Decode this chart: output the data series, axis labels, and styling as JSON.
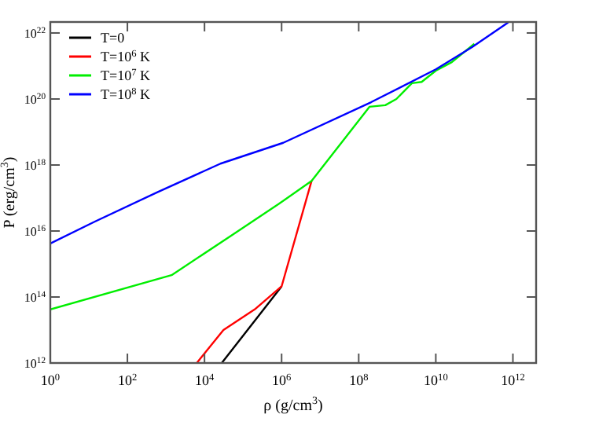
{
  "chart_data": {
    "type": "line",
    "xlabel": "ρ (g/cm$^{3}$)",
    "ylabel": "P (erg/cm$^{3}$)",
    "log": "xy",
    "legend": "top left",
    "grid": false,
    "xlim": [
      1,
      4000000000000.0
    ],
    "ylim": [
      1000000000000.0,
      2.15e+22
    ],
    "xticks": [
      {
        "value": 1,
        "label": "10$^{0}$"
      },
      {
        "value": 100,
        "label": "10$^{2}$"
      },
      {
        "value": 10000,
        "label": "10$^{4}$"
      },
      {
        "value": 1000000,
        "label": "10$^{6}$"
      },
      {
        "value": 100000000,
        "label": "10$^{8}$"
      },
      {
        "value": 10000000000,
        "label": "10$^{10}$"
      },
      {
        "value": 1000000000000,
        "label": "10$^{12}$"
      }
    ],
    "yticks": [
      {
        "value": 1000000000000.0,
        "label": "10$^{12}$"
      },
      {
        "value": 100000000000000.0,
        "label": "10$^{14}$"
      },
      {
        "value": 1e+16,
        "label": "10$^{16}$"
      },
      {
        "value": 1e+18,
        "label": "10$^{18}$"
      },
      {
        "value": 1e+20,
        "label": "10$^{20}$"
      },
      {
        "value": 1e+22,
        "label": "10$^{22}$"
      }
    ],
    "series": [
      {
        "name": "T=0",
        "color": "#000000",
        "x": [
          28000,
          1000000
        ],
        "values": [
          1000000000000.0,
          210000000000000.0
        ]
      },
      {
        "name": "T=10$^{6}$ K",
        "color": "#ff0000",
        "x": [
          6300,
          31000,
          200000,
          1000000,
          6000000
        ],
        "values": [
          1000000000000.0,
          10000000000000.0,
          42000000000000.0,
          210000000000000.0,
          3.3e+17
        ]
      },
      {
        "name": "T=10$^{7}$ K",
        "color": "#00ee00",
        "x": [
          1,
          1400,
          49000,
          830000,
          6000000,
          190000000,
          490000000,
          950000000,
          2400000000,
          4300000000,
          10000000000,
          26000000000,
          100000000000
        ],
        "values": [
          42000000000000.0,
          460000000000000.0,
          7200000000000000.0,
          6.5e+16,
          3.3e+17,
          5.8e+19,
          6.5e+19,
          1e+20,
          3e+20,
          3.3e+20,
          7.2e+20,
          1.3e+21,
          4.7e+21
        ]
      },
      {
        "name": "T=10$^{8}$ K",
        "color": "#0000ff",
        "x": [
          1,
          14,
          600,
          26000,
          1100000,
          210000000,
          10000000000,
          87000000000,
          760000000000
        ],
        "values": [
          4200000000000000.0,
          1.9e+16,
          1.5e+17,
          1.1e+18,
          4.7e+18,
          8e+19,
          7.9e+20,
          3.7e+21,
          2.1e+22
        ]
      }
    ]
  }
}
